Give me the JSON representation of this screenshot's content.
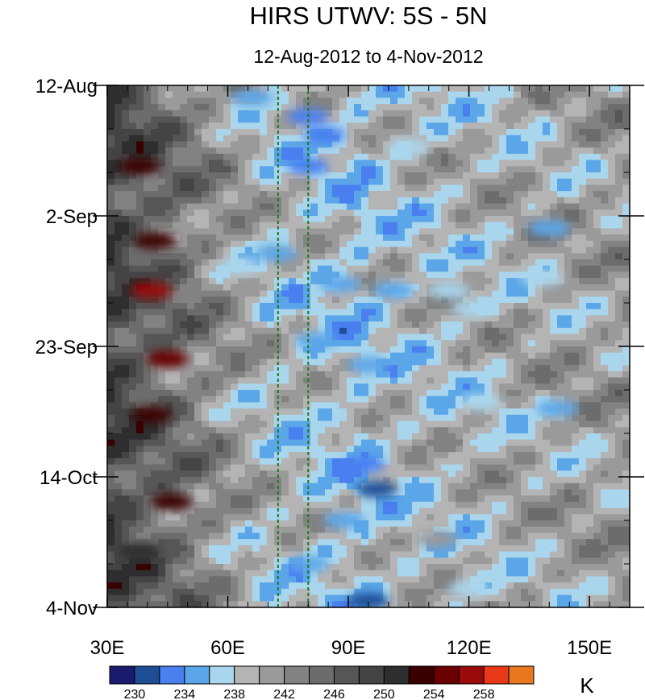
{
  "chart_data": {
    "type": "heatmap",
    "title": "HIRS UTWV: 5S - 5N",
    "subtitle": "12-Aug-2012 to 4-Nov-2012",
    "x_axis": {
      "range": [
        30,
        160
      ],
      "ticks": [
        30,
        60,
        90,
        120,
        150
      ],
      "tick_labels": [
        "30E",
        "60E",
        "90E",
        "120E",
        "150E"
      ]
    },
    "y_axis": {
      "range": [
        "12-Aug-2012",
        "4-Nov-2012"
      ],
      "ticks": [
        "12-Aug-2012",
        "2-Sep-2012",
        "23-Sep-2012",
        "14-Oct-2012",
        "4-Nov-2012"
      ],
      "tick_labels": [
        "12-Aug",
        "2-Sep",
        "23-Sep",
        "14-Oct",
        "4-Nov"
      ],
      "direction": "top-to-bottom"
    },
    "reference_lines_longitude": [
      72.5,
      80
    ],
    "colorbar": {
      "unit": "K",
      "levels": [
        228,
        230,
        232,
        234,
        236,
        238,
        240,
        242,
        244,
        246,
        248,
        250,
        252,
        254,
        256,
        258,
        260
      ],
      "labeled_levels": [
        230,
        234,
        238,
        242,
        246,
        250,
        254,
        258
      ],
      "colors": [
        "#1a1a6e",
        "#1f4e96",
        "#4a7ff0",
        "#5ba6e8",
        "#a9d6ec",
        "#b4b4b4",
        "#9a9a9a",
        "#828282",
        "#6c6c6c",
        "#565656",
        "#444444",
        "#2e2e2e",
        "#3a0000",
        "#6b0000",
        "#9b0a0a",
        "#e83a1a",
        "#e87820"
      ]
    },
    "features": [
      {
        "lon": 38,
        "date": "25-Aug-2012",
        "value": 252
      },
      {
        "lon": 42,
        "date": "6-Sep-2012",
        "value": 252
      },
      {
        "lon": 41,
        "date": "14-Sep-2012",
        "value": 256
      },
      {
        "lon": 45,
        "date": "25-Sep-2012",
        "value": 255
      },
      {
        "lon": 41,
        "date": "4-Oct-2012",
        "value": 253
      },
      {
        "lon": 46,
        "date": "18-Oct-2012",
        "value": 253
      },
      {
        "lon": 38,
        "date": "26-Oct-2012",
        "value": 250
      },
      {
        "lon": 66,
        "date": "14-Aug-2012",
        "value": 234
      },
      {
        "lon": 80,
        "date": "17-Aug-2012",
        "value": 232
      },
      {
        "lon": 84,
        "date": "20-Aug-2012",
        "value": 232
      },
      {
        "lon": 80,
        "date": "25-Aug-2012",
        "value": 233
      },
      {
        "lon": 105,
        "date": "22-Aug-2012",
        "value": 236
      },
      {
        "lon": 72,
        "date": "8-Sep-2012",
        "value": 235
      },
      {
        "lon": 63,
        "date": "10-Sep-2012",
        "value": 236
      },
      {
        "lon": 88,
        "date": "13-Sep-2012",
        "value": 234
      },
      {
        "lon": 101,
        "date": "14-Sep-2012",
        "value": 235
      },
      {
        "lon": 82,
        "date": "22-Sep-2012",
        "value": 235
      },
      {
        "lon": 95,
        "date": "26-Sep-2012",
        "value": 234
      },
      {
        "lon": 115,
        "date": "14-Sep-2012",
        "value": 236
      },
      {
        "lon": 121,
        "date": "17-Sep-2012",
        "value": 236
      },
      {
        "lon": 140,
        "date": "4-Sep-2012",
        "value": 234
      },
      {
        "lon": 138,
        "date": "12-Sep-2012",
        "value": 236
      },
      {
        "lon": 123,
        "date": "2-Oct-2012",
        "value": 237
      },
      {
        "lon": 142,
        "date": "3-Oct-2012",
        "value": 235
      },
      {
        "lon": 94,
        "date": "12-Oct-2012",
        "value": 232
      },
      {
        "lon": 97,
        "date": "16-Oct-2012",
        "value": 231
      },
      {
        "lon": 89,
        "date": "21-Oct-2012",
        "value": 234
      },
      {
        "lon": 80,
        "date": "28-Oct-2012",
        "value": 235
      },
      {
        "lon": 95,
        "date": "3-Nov-2012",
        "value": 231
      },
      {
        "lon": 120,
        "date": "1-Nov-2012",
        "value": 236
      },
      {
        "lon": 112,
        "date": "24-Oct-2012",
        "value": 240
      }
    ]
  }
}
